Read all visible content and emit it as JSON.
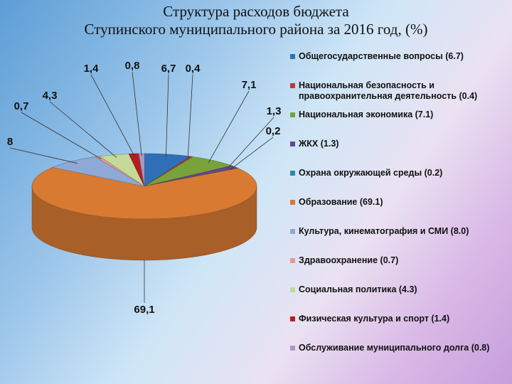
{
  "title": {
    "line1": "Структура расходов бюджета",
    "line2": "Ступинского муниципального района за 2016 год, (%)"
  },
  "chart_data": {
    "type": "pie",
    "title": "Структура расходов бюджета Ступинского муниципального района за 2016 год, (%)",
    "slices": [
      {
        "name": "Общегосударственные вопросы (6.7)",
        "value": 6.7,
        "label": "6,7",
        "color": "#2e6fb8"
      },
      {
        "name": "Национальная безопасность и правоохранительная деятельность (0.4)",
        "value": 0.4,
        "label": "0,4",
        "color": "#c0392b"
      },
      {
        "name": "Национальная экономика (7.1)",
        "value": 7.1,
        "label": "7,1",
        "color": "#79a33a"
      },
      {
        "name": "ЖКХ (1.3)",
        "value": 1.3,
        "label": "1,3",
        "color": "#6a4494"
      },
      {
        "name": "Охрана окружающей среды (0.2)",
        "value": 0.2,
        "label": "0,2",
        "color": "#2a8aa8"
      },
      {
        "name": "Образование (69.1)",
        "value": 69.1,
        "label": "69,1",
        "color": "#d97a33"
      },
      {
        "name": "Культура, кинематография и СМИ (8.0)",
        "value": 8.0,
        "label": "8",
        "color": "#8fa9d6"
      },
      {
        "name": "Здравоохранение (0.7)",
        "value": 0.7,
        "label": "0,7",
        "color": "#e09a95"
      },
      {
        "name": "Социальная политика (4.3)",
        "value": 4.3,
        "label": "4,3",
        "color": "#c4d99a"
      },
      {
        "name": "Физическая культура и спорт (1.4)",
        "value": 1.4,
        "label": "1,4",
        "color": "#b51e1e"
      },
      {
        "name": "Обслуживание муниципального долга (0.8)",
        "value": 0.8,
        "label": "0,8",
        "color": "#a99ac6"
      }
    ],
    "legend_position": "right"
  }
}
